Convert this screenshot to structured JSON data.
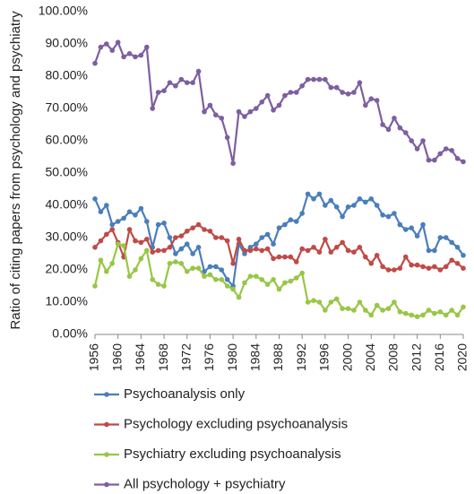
{
  "chart_data": {
    "type": "line",
    "ylabel": "Ratio of citing papers from psychology and psychiatry",
    "x": [
      1956,
      1957,
      1958,
      1959,
      1960,
      1961,
      1962,
      1963,
      1964,
      1965,
      1966,
      1967,
      1968,
      1969,
      1970,
      1971,
      1972,
      1973,
      1974,
      1975,
      1976,
      1977,
      1978,
      1979,
      1980,
      1981,
      1982,
      1983,
      1984,
      1985,
      1986,
      1987,
      1988,
      1989,
      1990,
      1991,
      1992,
      1993,
      1994,
      1995,
      1996,
      1997,
      1998,
      1999,
      2000,
      2001,
      2002,
      2003,
      2004,
      2005,
      2006,
      2007,
      2008,
      2009,
      2010,
      2011,
      2012,
      2013,
      2014,
      2015,
      2016,
      2017,
      2018,
      2019,
      2020
    ],
    "xlim": [
      1956,
      2020
    ],
    "xticks": [
      1956,
      1960,
      1964,
      1968,
      1972,
      1976,
      1980,
      1984,
      1988,
      1992,
      1996,
      2000,
      2004,
      2008,
      2012,
      2016,
      2020
    ],
    "ylim": [
      0,
      100
    ],
    "yticks": [
      {
        "value": 0,
        "label": "0.00%"
      },
      {
        "value": 10,
        "label": "10.00%"
      },
      {
        "value": 20,
        "label": "20.00%"
      },
      {
        "value": 30,
        "label": "30.00%"
      },
      {
        "value": 40,
        "label": "40.00%"
      },
      {
        "value": 50,
        "label": "50.00%"
      },
      {
        "value": 60,
        "label": "60.00%"
      },
      {
        "value": 70,
        "label": "70.00%"
      },
      {
        "value": 80,
        "label": "80.00%"
      },
      {
        "value": 90,
        "label": "90.00%"
      },
      {
        "value": 100,
        "label": "100.00%"
      }
    ],
    "grid": false,
    "legend": "bottom",
    "series": [
      {
        "name": "Psychoanalysis only",
        "color": "#4a7ebb",
        "values": [
          42,
          38,
          40,
          34,
          35,
          36,
          38,
          37,
          39,
          35,
          27,
          34,
          34.5,
          30,
          25,
          26.5,
          28,
          25,
          27,
          19.5,
          21,
          21,
          20,
          17,
          15,
          28,
          25,
          27,
          28,
          30,
          31,
          28,
          33,
          34,
          35.5,
          35,
          37.5,
          43.5,
          42,
          43.5,
          40,
          41.5,
          39.5,
          36.5,
          39.5,
          40,
          42,
          41,
          42,
          40,
          37,
          36.5,
          37.5,
          34,
          32.5,
          33,
          30.5,
          34,
          26,
          26,
          30,
          30,
          28.5,
          27,
          24.5
        ]
      },
      {
        "name": "Psychology excluding psychoanalysis",
        "color": "#be4b48",
        "values": [
          27,
          29,
          31,
          32.5,
          28.5,
          24,
          32.5,
          29,
          28.5,
          29.5,
          25.5,
          26,
          26,
          27,
          30,
          30.5,
          32,
          33,
          34,
          32.5,
          32,
          30,
          30,
          29,
          22,
          29.5,
          26,
          26,
          26.5,
          26,
          26.5,
          23.5,
          24,
          24,
          24,
          22.5,
          26.5,
          26,
          27,
          25.5,
          29.5,
          25.5,
          27,
          28.5,
          26,
          25.5,
          27,
          24,
          22,
          24.5,
          21,
          20,
          20,
          20.5,
          24,
          21.5,
          21.5,
          21,
          20.5,
          21,
          20,
          21,
          23,
          22,
          20.5
        ]
      },
      {
        "name": "Psychiatry excluding psychoanalysis",
        "color": "#98c646",
        "values": [
          15,
          23,
          19.5,
          22,
          28,
          27.5,
          18,
          20,
          23.5,
          26,
          17,
          15.5,
          15,
          22,
          22.5,
          22,
          19.5,
          20.5,
          20.5,
          18,
          18.5,
          17,
          17,
          15,
          14,
          11.5,
          16,
          18,
          18,
          17,
          15.5,
          17,
          14,
          16,
          16.5,
          17.5,
          19,
          10,
          10.5,
          10,
          7.5,
          10,
          11,
          8,
          8,
          7.5,
          10,
          7.5,
          6,
          9,
          7.5,
          8,
          10,
          7,
          6.5,
          6,
          5.5,
          6,
          7.5,
          6.5,
          7,
          6,
          7.5,
          6,
          8.5
        ]
      },
      {
        "name": "All psychology + psychiatry",
        "color": "#7d5fa0",
        "values": [
          84,
          89,
          90,
          88,
          90.5,
          86,
          87,
          86,
          86.5,
          89,
          70,
          75,
          75.5,
          78,
          77,
          79,
          78,
          78,
          81.5,
          69,
          71,
          68,
          67,
          61,
          53,
          69,
          67.5,
          69,
          70,
          72,
          74,
          69.5,
          71,
          74,
          75,
          75,
          77,
          79,
          79,
          79,
          79,
          76.5,
          76.5,
          75,
          74.5,
          75,
          78,
          71,
          73,
          72.5,
          65,
          63.5,
          67,
          64,
          62.5,
          60,
          57.5,
          60,
          54,
          54,
          56,
          57.5,
          57,
          54.5,
          53.5
        ]
      }
    ]
  }
}
